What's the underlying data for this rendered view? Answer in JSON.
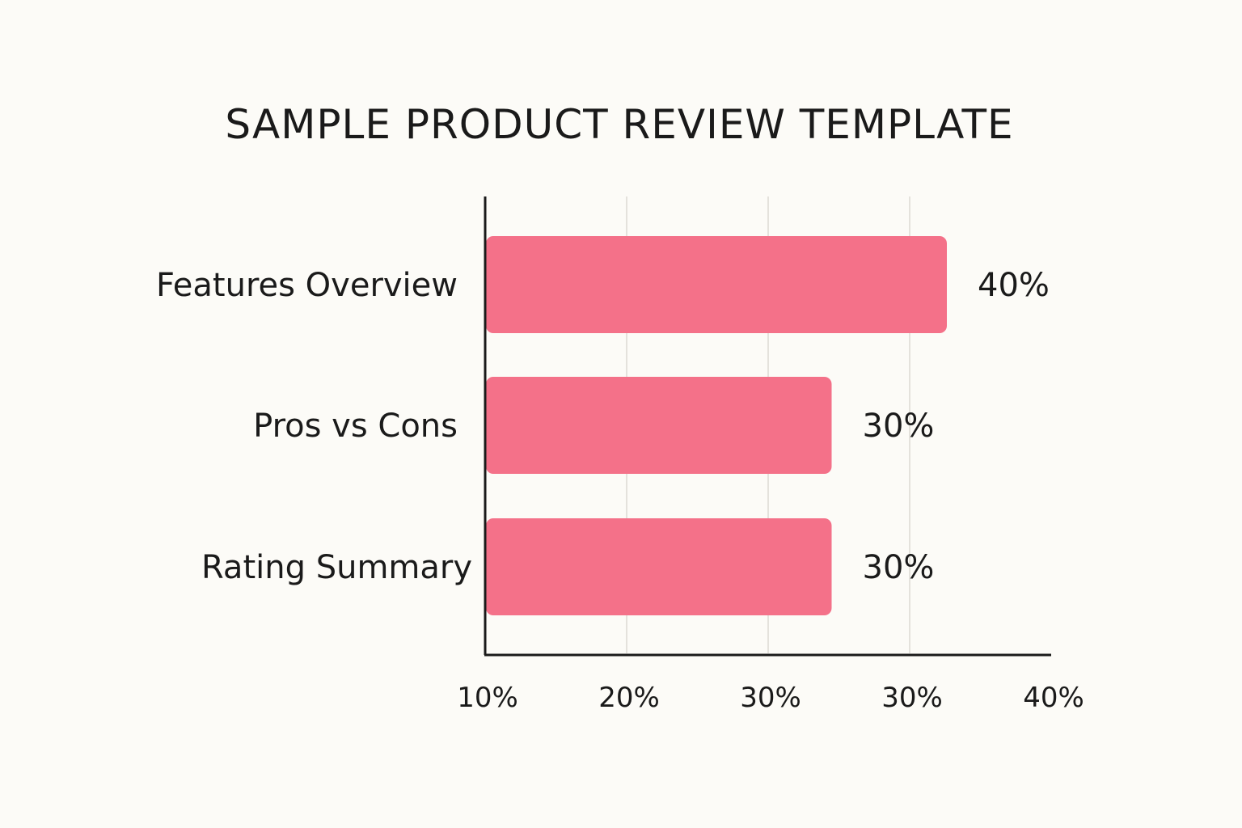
{
  "chart_data": {
    "type": "bar",
    "orientation": "horizontal",
    "title": "SAMPLE PRODUCT REVIEW TEMPLATE",
    "xlabel": "",
    "ylabel": "",
    "categories": [
      "Features Overview",
      "Pros vs Cons",
      "Rating Summary"
    ],
    "values": [
      40,
      30,
      30
    ],
    "value_labels": [
      "40%",
      "30%",
      "30%"
    ],
    "x_tick_labels": [
      "10%",
      "20%",
      "30%",
      "30%",
      "40%"
    ],
    "grid": true,
    "legend": "none",
    "bar_color": "#f47189"
  }
}
